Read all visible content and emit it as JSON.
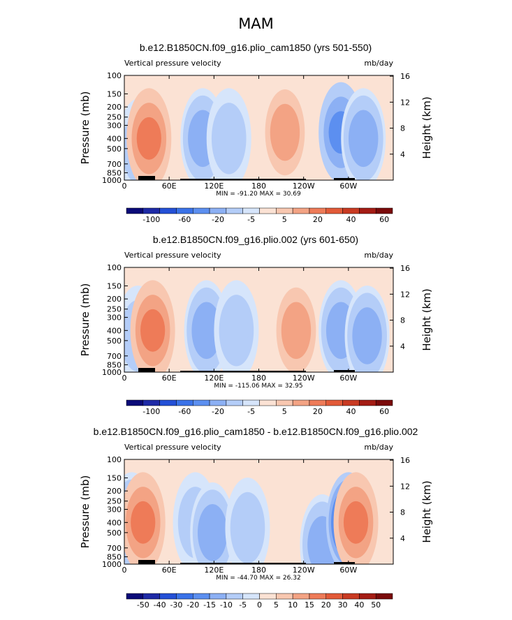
{
  "figure": {
    "title": "MAM"
  },
  "chart_data": [
    {
      "type": "heatmap",
      "title": "b.e12.B1850CN.f09_g16.plio_cam1850 (yrs 501-550)",
      "left_label": "Vertical pressure velocity",
      "right_label": "mb/day",
      "ylabel": "Pressure (mb)",
      "ylabel_right": "Height (km)",
      "x_ticks": [
        "0",
        "60E",
        "120E",
        "180",
        "120W",
        "60W"
      ],
      "y_ticks": [
        "100",
        "150",
        "200",
        "250",
        "300",
        "400",
        "500",
        "700",
        "850",
        "1000"
      ],
      "y_ticks_right": [
        "16",
        "12",
        "8",
        "4"
      ],
      "stats": "MIN = -91.20   MAX =  30.69",
      "colorbar_labels": [
        "-100",
        "-60",
        "-20",
        "-5",
        "5",
        "20",
        "40",
        "60"
      ],
      "colors": [
        "#0a0a78",
        "#1e2aa6",
        "#2450d6",
        "#3a72e8",
        "#5c8ff0",
        "#8cb0f4",
        "#b4cdf8",
        "#d6e5fb",
        "#fbe2d4",
        "#f8c7b0",
        "#f3a384",
        "#ee7b58",
        "#e25a38",
        "#c83a22",
        "#a41c14",
        "#7a0a0a"
      ],
      "blobs": [
        {
          "x": 20,
          "p": 500,
          "v": -40
        },
        {
          "x": 33,
          "p": 400,
          "v": 30
        },
        {
          "x": 105,
          "p": 400,
          "v": -60
        },
        {
          "x": 140,
          "p": 400,
          "v": -45
        },
        {
          "x": 215,
          "p": 350,
          "v": 12
        },
        {
          "x": 290,
          "p": 350,
          "v": -70
        },
        {
          "x": 320,
          "p": 400,
          "v": -50
        }
      ]
    },
    {
      "type": "heatmap",
      "title": "b.e12.B1850CN.f09_g16.plio.002 (yrs 601-650)",
      "left_label": "Vertical pressure velocity",
      "right_label": "mb/day",
      "ylabel": "Pressure (mb)",
      "ylabel_right": "Height (km)",
      "x_ticks": [
        "0",
        "60E",
        "120E",
        "180",
        "120W",
        "60W"
      ],
      "y_ticks": [
        "100",
        "150",
        "200",
        "250",
        "300",
        "400",
        "500",
        "700",
        "850",
        "1000"
      ],
      "y_ticks_right": [
        "16",
        "12",
        "8",
        "4"
      ],
      "stats": "MIN = -115.06   MAX =  32.95",
      "colorbar_labels": [
        "-100",
        "-60",
        "-20",
        "-5",
        "5",
        "20",
        "40",
        "60"
      ],
      "colors": [
        "#0a0a78",
        "#1e2aa6",
        "#2450d6",
        "#3a72e8",
        "#5c8ff0",
        "#8cb0f4",
        "#b4cdf8",
        "#d6e5fb",
        "#fbe2d4",
        "#f8c7b0",
        "#f3a384",
        "#ee7b58",
        "#e25a38",
        "#c83a22",
        "#a41c14",
        "#7a0a0a"
      ],
      "blobs": [
        {
          "x": 18,
          "p": 450,
          "v": -45
        },
        {
          "x": 38,
          "p": 400,
          "v": 30
        },
        {
          "x": 110,
          "p": 400,
          "v": -55
        },
        {
          "x": 150,
          "p": 400,
          "v": -45
        },
        {
          "x": 230,
          "p": 400,
          "v": 18
        },
        {
          "x": 290,
          "p": 400,
          "v": -60
        },
        {
          "x": 325,
          "p": 450,
          "v": -50
        }
      ]
    },
    {
      "type": "heatmap",
      "title": "b.e12.B1850CN.f09_g16.plio_cam1850 - b.e12.B1850CN.f09_g16.plio.002",
      "left_label": "Vertical pressure velocity",
      "right_label": "mb/day",
      "ylabel": "Pressure (mb)",
      "ylabel_right": "Height (km)",
      "x_ticks": [
        "0",
        "60E",
        "120E",
        "180",
        "120W",
        "60W"
      ],
      "y_ticks": [
        "100",
        "150",
        "200",
        "250",
        "300",
        "400",
        "500",
        "700",
        "850",
        "1000"
      ],
      "y_ticks_right": [
        "16",
        "12",
        "8",
        "4"
      ],
      "stats": "MIN = -44.70   MAX =  26.32",
      "colorbar_labels": [
        "-50",
        "-40",
        "-30",
        "-20",
        "-15",
        "-10",
        "-5",
        "0",
        "5",
        "10",
        "15",
        "20",
        "30",
        "40",
        "50"
      ],
      "colors": [
        "#0a0a78",
        "#1e2aa6",
        "#2450d6",
        "#3a72e8",
        "#5c8ff0",
        "#8cb0f4",
        "#b4cdf8",
        "#d6e5fb",
        "#fbe2d4",
        "#f8c7b0",
        "#f3a384",
        "#ee7b58",
        "#e25a38",
        "#c83a22",
        "#a41c14",
        "#7a0a0a"
      ],
      "blobs": [
        {
          "x": 10,
          "p": 400,
          "v": -20
        },
        {
          "x": 25,
          "p": 400,
          "v": 25
        },
        {
          "x": 95,
          "p": 400,
          "v": -12
        },
        {
          "x": 118,
          "p": 500,
          "v": -18
        },
        {
          "x": 165,
          "p": 450,
          "v": -12
        },
        {
          "x": 265,
          "p": 650,
          "v": -15
        },
        {
          "x": 300,
          "p": 400,
          "v": -35
        },
        {
          "x": 310,
          "p": 400,
          "v": 25
        }
      ]
    }
  ]
}
